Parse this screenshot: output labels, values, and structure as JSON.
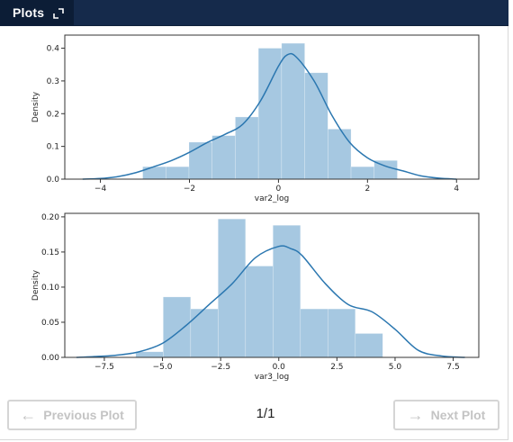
{
  "tab": {
    "title": "Plots",
    "expand_icon": "expand-icon"
  },
  "colors": {
    "bar_fill": "#a6c8e1",
    "kde_line": "#2b77b0",
    "topbar": "#152a4b",
    "tab_bg": "#0c1d36"
  },
  "navigation": {
    "prev_label": "Previous Plot",
    "next_label": "Next Plot",
    "prev_icon": "arrow-left-icon",
    "next_icon": "arrow-right-icon",
    "page_indicator": "1/1"
  },
  "chart_data": [
    {
      "type": "bar",
      "subtype": "histogram-with-kde",
      "xlabel": "var2_log",
      "ylabel": "Density",
      "xlim": [
        -4.8,
        4.5
      ],
      "ylim": [
        0,
        0.44
      ],
      "xticks": [
        -4,
        -2,
        0,
        2,
        4
      ],
      "xtick_labels": [
        "−4",
        "−2",
        "0",
        "2",
        "4"
      ],
      "yticks": [
        0.0,
        0.1,
        0.2,
        0.3,
        0.4
      ],
      "ytick_labels": [
        "0.0",
        "0.1",
        "0.2",
        "0.3",
        "0.4"
      ],
      "bin_edges": [
        -3.05,
        -2.53,
        -2.01,
        -1.49,
        -0.97,
        -0.45,
        0.07,
        0.59,
        1.11,
        1.63,
        2.15,
        2.67
      ],
      "values": [
        0.038,
        0.038,
        0.113,
        0.133,
        0.19,
        0.4,
        0.415,
        0.325,
        0.153,
        0.038,
        0.057
      ],
      "kde": {
        "x": [
          -4.4,
          -4.0,
          -3.6,
          -3.2,
          -2.8,
          -2.4,
          -2.0,
          -1.6,
          -1.2,
          -0.8,
          -0.4,
          0.0,
          0.2,
          0.4,
          0.8,
          1.2,
          1.6,
          2.0,
          2.4,
          2.8,
          3.2,
          3.6,
          4.0
        ],
        "y": [
          0.0,
          0.002,
          0.008,
          0.02,
          0.038,
          0.057,
          0.082,
          0.112,
          0.137,
          0.168,
          0.24,
          0.345,
          0.38,
          0.373,
          0.3,
          0.195,
          0.112,
          0.065,
          0.04,
          0.025,
          0.01,
          0.003,
          0.0
        ]
      },
      "grid": false,
      "legend": "none"
    },
    {
      "type": "bar",
      "subtype": "histogram-with-kde",
      "xlabel": "var3_log",
      "ylabel": "Density",
      "xlim": [
        -9.2,
        8.6
      ],
      "ylim": [
        0,
        0.205
      ],
      "xticks": [
        -7.5,
        -5.0,
        -2.5,
        0.0,
        2.5,
        5.0,
        7.5
      ],
      "xtick_labels": [
        "−7.5",
        "−5.0",
        "−2.5",
        "0.0",
        "2.5",
        "5.0",
        "7.5"
      ],
      "yticks": [
        0.0,
        0.05,
        0.1,
        0.15,
        0.2
      ],
      "ytick_labels": [
        "0.00",
        "0.05",
        "0.10",
        "0.15",
        "0.20"
      ],
      "bin_edges": [
        -6.15,
        -4.97,
        -3.79,
        -2.61,
        -1.43,
        -0.25,
        0.93,
        2.11,
        3.29,
        4.47,
        5.65
      ],
      "values": [
        0.008,
        0.086,
        0.069,
        0.197,
        0.13,
        0.188,
        0.069,
        0.069,
        0.034,
        0.0
      ],
      "kde": {
        "x": [
          -8.7,
          -8.0,
          -7.0,
          -6.0,
          -5.0,
          -4.0,
          -3.0,
          -2.0,
          -1.0,
          0.0,
          0.5,
          1.0,
          2.0,
          3.0,
          4.0,
          5.0,
          6.0,
          7.0,
          8.0
        ],
        "y": [
          0.0,
          0.001,
          0.003,
          0.008,
          0.02,
          0.045,
          0.075,
          0.105,
          0.142,
          0.158,
          0.155,
          0.145,
          0.105,
          0.075,
          0.065,
          0.04,
          0.01,
          0.002,
          0.0
        ]
      },
      "grid": false,
      "legend": "none"
    }
  ]
}
